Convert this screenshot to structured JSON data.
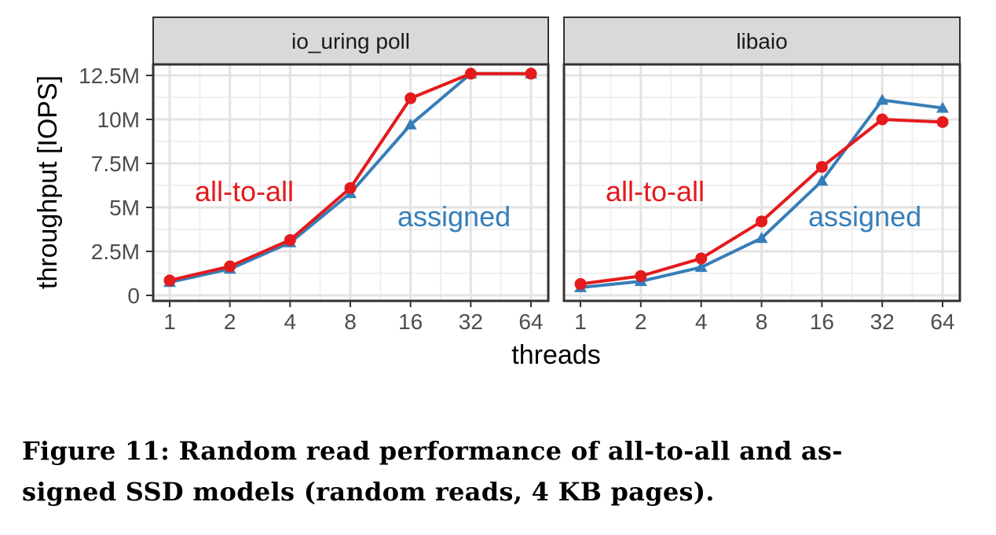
{
  "chart_data": {
    "type": "line",
    "ylabel": "throughput [IOPS]",
    "xlabel": "threads",
    "x": [
      1,
      2,
      4,
      8,
      16,
      32,
      64
    ],
    "x_tick_labels": [
      "1",
      "2",
      "4",
      "8",
      "16",
      "32",
      "64"
    ],
    "x_scale": "log2",
    "y_ticks": [
      0,
      2500000,
      5000000,
      7500000,
      10000000,
      12500000
    ],
    "y_tick_labels": [
      "0",
      "2.5M",
      "5M",
      "7.5M",
      "10M",
      "12.5M"
    ],
    "ylim": [
      0,
      13000000
    ],
    "grid": true,
    "colors": {
      "all-to-all": "#e41a1c",
      "assigned": "#377eb8"
    },
    "panels": [
      {
        "title": "io_uring poll",
        "series": [
          {
            "name": "all-to-all",
            "marker": "circle",
            "values": [
              850000,
              1650000,
              3150000,
              6100000,
              11200000,
              12600000,
              12600000
            ]
          },
          {
            "name": "assigned",
            "marker": "triangle",
            "values": [
              750000,
              1500000,
              3000000,
              5800000,
              9700000,
              12600000,
              12600000
            ]
          }
        ],
        "annotations": [
          {
            "text": "all-to-all",
            "series": "all-to-all"
          },
          {
            "text": "assigned",
            "series": "assigned"
          }
        ]
      },
      {
        "title": "libaio",
        "series": [
          {
            "name": "all-to-all",
            "marker": "circle",
            "values": [
              650000,
              1100000,
              2100000,
              4200000,
              7300000,
              10000000,
              9850000
            ]
          },
          {
            "name": "assigned",
            "marker": "triangle",
            "values": [
              450000,
              800000,
              1600000,
              3250000,
              6500000,
              11100000,
              10650000
            ]
          }
        ],
        "annotations": [
          {
            "text": "all-to-all",
            "series": "all-to-all"
          },
          {
            "text": "assigned",
            "series": "assigned"
          }
        ]
      }
    ]
  },
  "caption": {
    "line1": "Figure 11: Random read performance of all-to-all and as-",
    "line2": "signed SSD models (random reads, 4 KB pages)."
  }
}
